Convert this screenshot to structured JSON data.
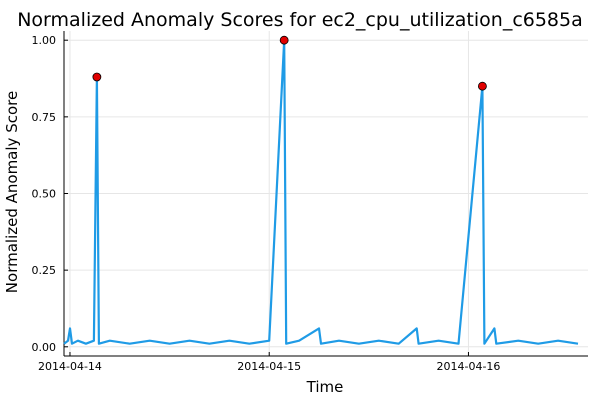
{
  "chart_data": {
    "type": "line",
    "title": "Normalized Anomaly Scores for ec2_cpu_utilization_c6585a",
    "xlabel": "Time",
    "ylabel": "Normalized Anomaly Score",
    "x_unit": "days",
    "x_start_label": "2014-04-14",
    "xlim": [
      -0.03,
      2.6
    ],
    "ylim": [
      -0.03,
      1.03
    ],
    "x_ticks": [
      {
        "value": 0,
        "label": "2014-04-14"
      },
      {
        "value": 1,
        "label": "2014-04-15"
      },
      {
        "value": 2,
        "label": "2014-04-16"
      }
    ],
    "y_ticks": [
      {
        "value": 0.0,
        "label": "0.00"
      },
      {
        "value": 0.25,
        "label": "0.25"
      },
      {
        "value": 0.5,
        "label": "0.50"
      },
      {
        "value": 0.75,
        "label": "0.75"
      },
      {
        "value": 1.0,
        "label": "1.00"
      }
    ],
    "grid": true,
    "series": [
      {
        "color": "#1f9be6",
        "points": [
          [
            -0.03,
            0.01
          ],
          [
            -0.01,
            0.02
          ],
          [
            0.0,
            0.06
          ],
          [
            0.01,
            0.01
          ],
          [
            0.04,
            0.02
          ],
          [
            0.08,
            0.01
          ],
          [
            0.12,
            0.02
          ],
          [
            0.135,
            0.88
          ],
          [
            0.145,
            0.01
          ],
          [
            0.2,
            0.02
          ],
          [
            0.3,
            0.01
          ],
          [
            0.4,
            0.02
          ],
          [
            0.5,
            0.01
          ],
          [
            0.6,
            0.02
          ],
          [
            0.7,
            0.01
          ],
          [
            0.8,
            0.02
          ],
          [
            0.9,
            0.01
          ],
          [
            1.0,
            0.02
          ],
          [
            1.075,
            1.0
          ],
          [
            1.085,
            0.01
          ],
          [
            1.15,
            0.02
          ],
          [
            1.25,
            0.06
          ],
          [
            1.26,
            0.01
          ],
          [
            1.35,
            0.02
          ],
          [
            1.45,
            0.01
          ],
          [
            1.55,
            0.02
          ],
          [
            1.65,
            0.01
          ],
          [
            1.74,
            0.06
          ],
          [
            1.75,
            0.01
          ],
          [
            1.85,
            0.02
          ],
          [
            1.95,
            0.01
          ],
          [
            2.07,
            0.85
          ],
          [
            2.08,
            0.01
          ],
          [
            2.13,
            0.06
          ],
          [
            2.14,
            0.01
          ],
          [
            2.25,
            0.02
          ],
          [
            2.35,
            0.01
          ],
          [
            2.45,
            0.02
          ],
          [
            2.55,
            0.01
          ]
        ]
      }
    ],
    "anomaly_points": {
      "color": "#e00000",
      "points": [
        [
          0.135,
          0.88
        ],
        [
          1.075,
          1.0
        ],
        [
          2.07,
          0.85
        ]
      ]
    }
  }
}
